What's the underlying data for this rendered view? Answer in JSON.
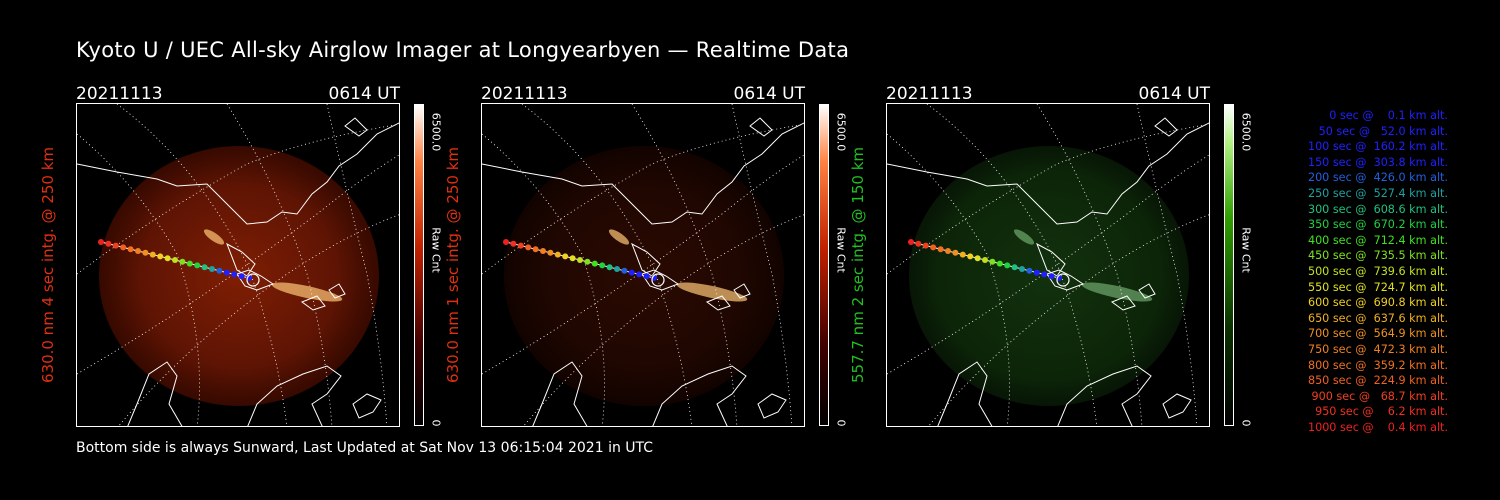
{
  "title": "Kyoto U / UEC All-sky Airglow Imager at Longyearbyen — Realtime Data",
  "footer": "Bottom side is always Sunward, Last Updated at Sat Nov 13 06:15:04 2021 in UTC",
  "colors": {
    "red_label": "#e03010",
    "green_label": "#20c020",
    "background": "#000000"
  },
  "panels": [
    {
      "date": "20211113",
      "time": "0614 UT",
      "ylabel": "630.0 nm 4 sec intg. @ 250 km",
      "cbar_max": "6500.0",
      "cbar_unit": "Raw Cnt",
      "cbar_min": "0",
      "colormap": "red",
      "ylabel_color": "#e03010",
      "image_intensity": 0.75
    },
    {
      "date": "20211113",
      "time": "0614 UT",
      "ylabel": "630.0 nm 1 sec intg. @ 250 km",
      "cbar_max": "6500.0",
      "cbar_unit": "Raw Cnt",
      "cbar_min": "0",
      "colormap": "red",
      "ylabel_color": "#e03010",
      "image_intensity": 0.25
    },
    {
      "date": "20211113",
      "time": "0614 UT",
      "ylabel": "557.7 nm 2 sec intg. @ 150 km",
      "cbar_max": "6500.0",
      "cbar_unit": "Raw Cnt",
      "cbar_min": "0",
      "colormap": "green",
      "ylabel_color": "#20c020",
      "image_intensity": 0.45
    }
  ],
  "legend": [
    {
      "text": "   0 sec @    0.1 km alt.",
      "color": "#2020ff"
    },
    {
      "text": "  50 sec @   52.0 km alt.",
      "color": "#2020ff"
    },
    {
      "text": " 100 sec @  160.2 km alt.",
      "color": "#2020ff"
    },
    {
      "text": " 150 sec @  303.8 km alt.",
      "color": "#2020ff"
    },
    {
      "text": " 200 sec @  426.0 km alt.",
      "color": "#2060e0"
    },
    {
      "text": " 250 sec @  527.4 km alt.",
      "color": "#20a0a0"
    },
    {
      "text": " 300 sec @  608.6 km alt.",
      "color": "#20c080"
    },
    {
      "text": " 350 sec @  670.2 km alt.",
      "color": "#20d040"
    },
    {
      "text": " 400 sec @  712.4 km alt.",
      "color": "#40e020"
    },
    {
      "text": " 450 sec @  735.5 km alt.",
      "color": "#80e020"
    },
    {
      "text": " 500 sec @  739.6 km alt.",
      "color": "#c0e020"
    },
    {
      "text": " 550 sec @  724.7 km alt.",
      "color": "#e0e020"
    },
    {
      "text": " 600 sec @  690.8 km alt.",
      "color": "#f0d020"
    },
    {
      "text": " 650 sec @  637.6 km alt.",
      "color": "#f0b020"
    },
    {
      "text": " 700 sec @  564.9 km alt.",
      "color": "#f09020"
    },
    {
      "text": " 750 sec @  472.3 km alt.",
      "color": "#f08020"
    },
    {
      "text": " 800 sec @  359.2 km alt.",
      "color": "#f07020"
    },
    {
      "text": " 850 sec @  224.9 km alt.",
      "color": "#f06020"
    },
    {
      "text": " 900 sec @   68.7 km alt.",
      "color": "#f04020"
    },
    {
      "text": " 950 sec @    6.2 km alt.",
      "color": "#f03020"
    },
    {
      "text": "1000 sec @    0.4 km alt.",
      "color": "#f02020"
    }
  ]
}
